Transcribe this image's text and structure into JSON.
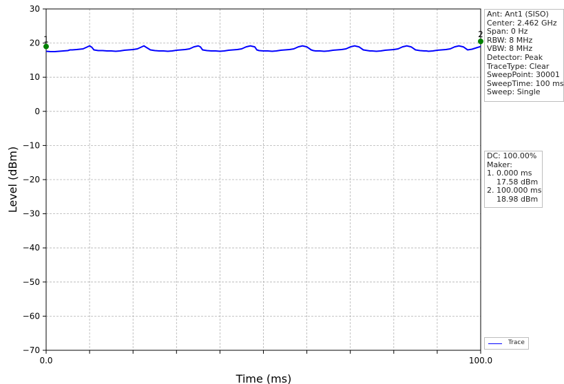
{
  "chart_data": {
    "type": "line",
    "xlabel": "Time (ms)",
    "ylabel": "Level (dBm)",
    "xlim": [
      0.0,
      100.0
    ],
    "ylim": [
      -70,
      30
    ],
    "x_tick_labels": [
      "0.0",
      "100.0"
    ],
    "x_minor_ticks": [
      10,
      20,
      30,
      40,
      50,
      60,
      70,
      80,
      90
    ],
    "y_ticks": [
      30,
      20,
      10,
      0,
      -10,
      -20,
      -30,
      -40,
      -50,
      -60,
      -70
    ],
    "y_tick_labels": [
      "30",
      "20",
      "10",
      "0",
      "−10",
      "−20",
      "−30",
      "−40",
      "−50",
      "−60",
      "−70"
    ],
    "grid": true,
    "legend_position": "lower-right",
    "series": [
      {
        "name": "Trace",
        "color": "#0000ff",
        "x": [
          0,
          1,
          2,
          3,
          4,
          5,
          5.5,
          6,
          7,
          8.5,
          9.5,
          10,
          10.5,
          11,
          12,
          13,
          14,
          15,
          16,
          17,
          18,
          19,
          20,
          21,
          22,
          22.5,
          23,
          24,
          25,
          26,
          27,
          28,
          29,
          30,
          31,
          32,
          33,
          34,
          35,
          35.5,
          36,
          37,
          38,
          39,
          40,
          41,
          42,
          43,
          44,
          45,
          46,
          47,
          48,
          48.5,
          49,
          50,
          51,
          52,
          53,
          54,
          55,
          56,
          57,
          58,
          59,
          60,
          61,
          61.5,
          62,
          63,
          64,
          65,
          66,
          67,
          68,
          69,
          70,
          71,
          72,
          73,
          74,
          74.5,
          75,
          76,
          77,
          78,
          79,
          80,
          81,
          82,
          83,
          84,
          85,
          86,
          87,
          87.5,
          88,
          89,
          90,
          91,
          92,
          93,
          94,
          95,
          96,
          97,
          98,
          99,
          100
        ],
        "y": [
          17.6,
          17.5,
          17.5,
          17.6,
          17.7,
          17.8,
          18.0,
          18.0,
          18.1,
          18.3,
          18.9,
          19.2,
          18.8,
          18.0,
          17.8,
          17.8,
          17.7,
          17.7,
          17.6,
          17.7,
          17.9,
          18.0,
          18.1,
          18.3,
          18.9,
          19.2,
          18.8,
          18.0,
          17.8,
          17.7,
          17.7,
          17.6,
          17.7,
          17.9,
          18.0,
          18.1,
          18.3,
          18.9,
          19.2,
          18.9,
          18.0,
          17.8,
          17.7,
          17.7,
          17.6,
          17.7,
          17.9,
          18.0,
          18.1,
          18.3,
          18.9,
          19.2,
          18.9,
          18.0,
          17.8,
          17.7,
          17.7,
          17.6,
          17.7,
          17.9,
          18.0,
          18.1,
          18.3,
          18.9,
          19.2,
          18.9,
          18.0,
          17.8,
          17.7,
          17.7,
          17.6,
          17.7,
          17.9,
          18.0,
          18.1,
          18.3,
          18.9,
          19.2,
          18.9,
          18.0,
          17.8,
          17.7,
          17.7,
          17.6,
          17.7,
          17.9,
          18.0,
          18.1,
          18.3,
          18.9,
          19.2,
          18.9,
          18.0,
          17.8,
          17.7,
          17.7,
          17.6,
          17.7,
          17.9,
          18.0,
          18.1,
          18.3,
          18.9,
          19.2,
          18.9,
          18.0,
          18.2,
          18.6,
          19.0
        ]
      }
    ],
    "markers": [
      {
        "label": "1",
        "x": 0.0,
        "y": 19.0,
        "color": "#008000"
      },
      {
        "label": "2",
        "x": 100.0,
        "y": 20.5,
        "color": "#008000"
      }
    ]
  },
  "info_panel": {
    "lines": [
      "Ant: Ant1 (SISO)",
      "Center: 2.462 GHz",
      "Span: 0 Hz",
      "RBW: 8 MHz",
      "VBW: 8 MHz",
      "Detector: Peak",
      "TraceType: Clear",
      "SweepPoint: 30001",
      "SweepTime: 100 ms",
      "Sweep: Single"
    ]
  },
  "marker_panel": {
    "lines": [
      "DC: 100.00%",
      "Maker:",
      "1. 0.000 ms",
      "    17.58 dBm",
      "2. 100.000 ms",
      "    18.98 dBm"
    ]
  }
}
